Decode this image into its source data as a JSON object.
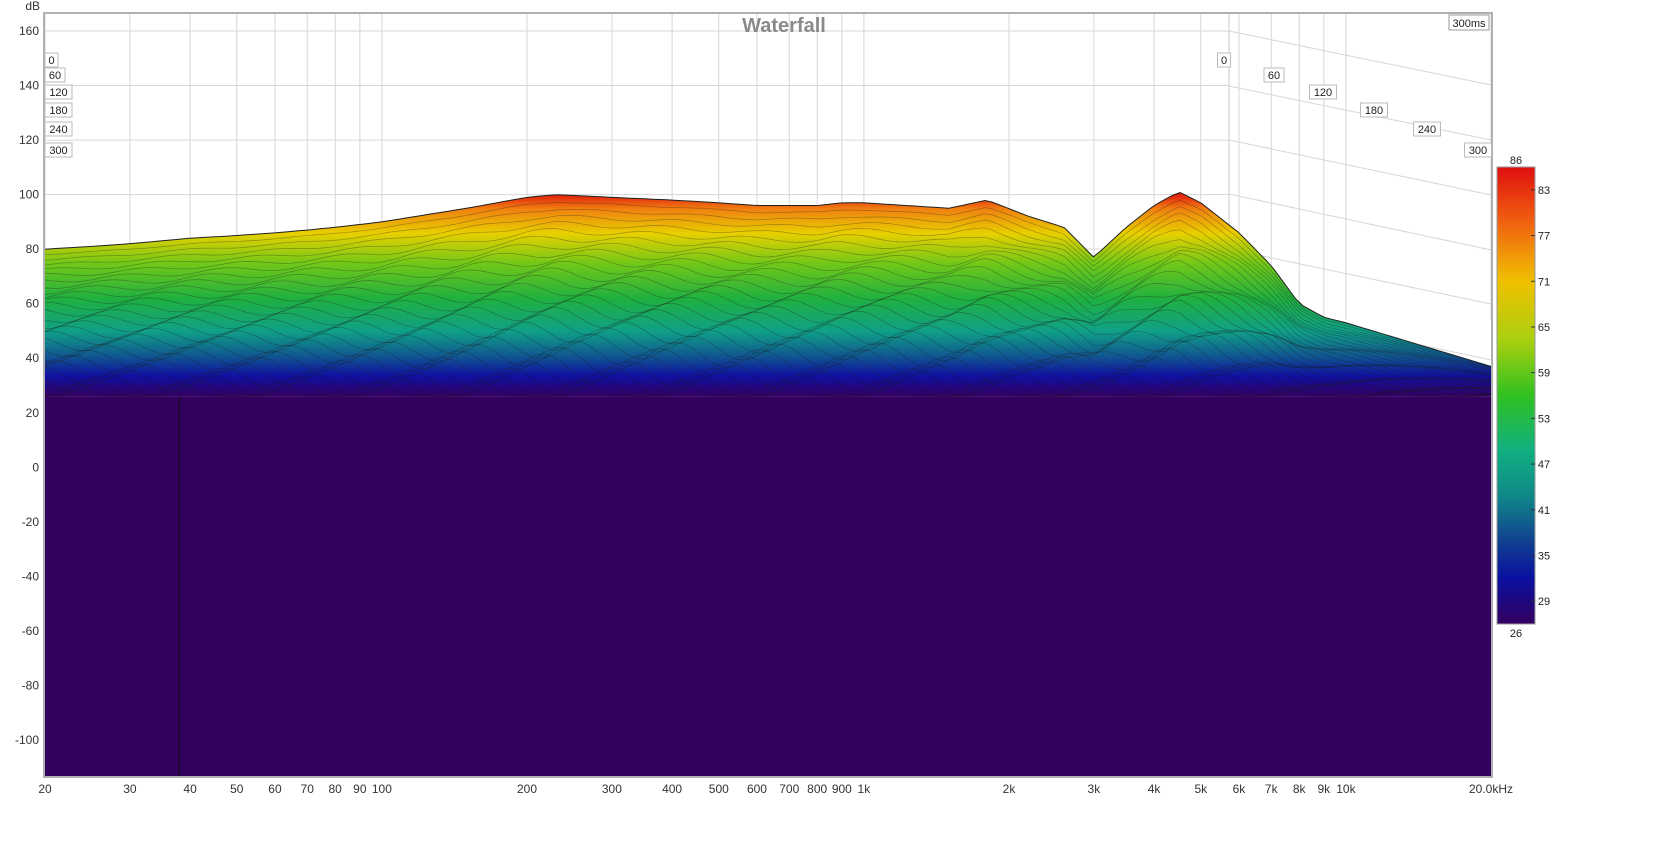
{
  "chart_data": {
    "type": "area",
    "title": "Waterfall",
    "time_window_label": "300ms",
    "y_axis_unit": "dB",
    "x_axis_unit_suffix": "kHz",
    "ylim": [
      -115,
      165
    ],
    "xlim": [
      20,
      20000
    ],
    "x_scale": "log",
    "grid": true,
    "y_ticks": [
      "160",
      "140",
      "120",
      "100",
      "80",
      "60",
      "40",
      "20",
      "0",
      "-20",
      "-40",
      "-60",
      "-80",
      "-100"
    ],
    "x_ticks": [
      {
        "v": 20,
        "label": "20"
      },
      {
        "v": 30,
        "label": "30"
      },
      {
        "v": 40,
        "label": "40"
      },
      {
        "v": 50,
        "label": "50"
      },
      {
        "v": 60,
        "label": "60"
      },
      {
        "v": 70,
        "label": "70"
      },
      {
        "v": 80,
        "label": "80"
      },
      {
        "v": 90,
        "label": "90"
      },
      {
        "v": 100,
        "label": "100"
      },
      {
        "v": 200,
        "label": "200"
      },
      {
        "v": 300,
        "label": "300"
      },
      {
        "v": 400,
        "label": "400"
      },
      {
        "v": 500,
        "label": "500"
      },
      {
        "v": 600,
        "label": "600"
      },
      {
        "v": 700,
        "label": "700"
      },
      {
        "v": 800,
        "label": "800"
      },
      {
        "v": 900,
        "label": "900"
      },
      {
        "v": 1000,
        "label": "1k"
      },
      {
        "v": 2000,
        "label": "2k"
      },
      {
        "v": 3000,
        "label": "3k"
      },
      {
        "v": 4000,
        "label": "4k"
      },
      {
        "v": 5000,
        "label": "5k"
      },
      {
        "v": 6000,
        "label": "6k"
      },
      {
        "v": 7000,
        "label": "7k"
      },
      {
        "v": 8000,
        "label": "8k"
      },
      {
        "v": 9000,
        "label": "9k"
      },
      {
        "v": 10000,
        "label": "10k"
      },
      {
        "v": 20000,
        "label": "20.0kHz"
      }
    ],
    "time_ticks_ms": [
      "0",
      "60",
      "120",
      "180",
      "240",
      "300"
    ],
    "colorbar": {
      "min_label": "26",
      "max_label": "86",
      "ticks": [
        "83",
        "77",
        "71",
        "65",
        "59",
        "53",
        "47",
        "41",
        "35",
        "29"
      ],
      "colors": [
        "#e01010",
        "#f06010",
        "#f0c000",
        "#a8d010",
        "#30c020",
        "#10b080",
        "#108888",
        "#104090",
        "#0a10a0",
        "#330060"
      ]
    },
    "series": [
      {
        "x": [
          20,
          25,
          30,
          40,
          50,
          60,
          70,
          80,
          100,
          150,
          200,
          230,
          300,
          400,
          500,
          600,
          700,
          800,
          900,
          1000,
          1500,
          1800,
          2200,
          2600,
          3000,
          3500,
          4000,
          4500,
          5000,
          6000,
          7000,
          8000,
          9000,
          10000,
          20000
        ],
        "y": [
          80,
          81,
          82,
          84,
          85,
          86,
          87,
          88,
          90,
          95,
          99,
          100,
          99,
          98,
          97,
          96,
          96,
          96,
          97,
          97,
          95,
          98,
          92,
          88,
          77,
          88,
          96,
          101,
          97,
          86,
          74,
          60,
          55,
          53,
          37
        ]
      }
    ]
  }
}
